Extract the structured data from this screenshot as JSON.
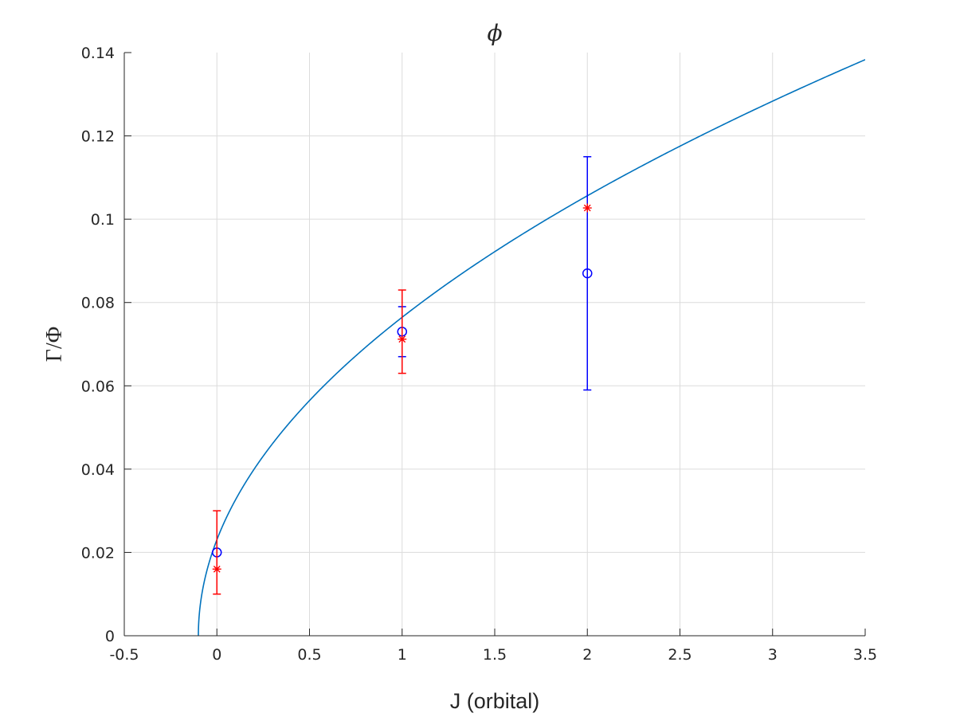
{
  "chart_data": {
    "type": "scatter",
    "title": "ϕ",
    "xlabel": "J (orbital)",
    "ylabel": "Γ/Φ",
    "xlim": [
      -0.5,
      3.5
    ],
    "ylim": [
      0,
      0.14
    ],
    "xticks": [
      -0.5,
      0,
      0.5,
      1,
      1.5,
      2,
      2.5,
      3,
      3.5
    ],
    "xtick_labels": [
      "-0.5",
      "0",
      "0.5",
      "1",
      "1.5",
      "2",
      "2.5",
      "3",
      "3.5"
    ],
    "yticks": [
      0,
      0.02,
      0.04,
      0.06,
      0.08,
      0.1,
      0.12,
      0.14
    ],
    "ytick_labels": [
      "0",
      "0.02",
      "0.04",
      "0.06",
      "0.08",
      "0.1",
      "0.12",
      "0.14"
    ],
    "grid": true,
    "legend": "none",
    "series": [
      {
        "type": "errorbar",
        "marker": "circle",
        "color": "#0000ff",
        "x": [
          0,
          1,
          2
        ],
        "y": [
          0.02,
          0.073,
          0.087
        ],
        "err_low": [
          0.02,
          0.067,
          0.059
        ],
        "err_high": [
          0.02,
          0.079,
          0.115
        ]
      },
      {
        "type": "errorbar",
        "marker": "asterisk",
        "color": "#ff0000",
        "x": [
          0,
          1,
          2
        ],
        "y": [
          0.016,
          0.0712,
          0.1027
        ],
        "err_low": [
          0.01,
          0.063,
          0.1027
        ],
        "err_high": [
          0.03,
          0.083,
          0.1027
        ]
      },
      {
        "type": "line",
        "color": "#0072bd",
        "model": "sqrt",
        "x_start": -0.1,
        "x_end": 3.5,
        "y_end": 0.1383
      }
    ]
  }
}
